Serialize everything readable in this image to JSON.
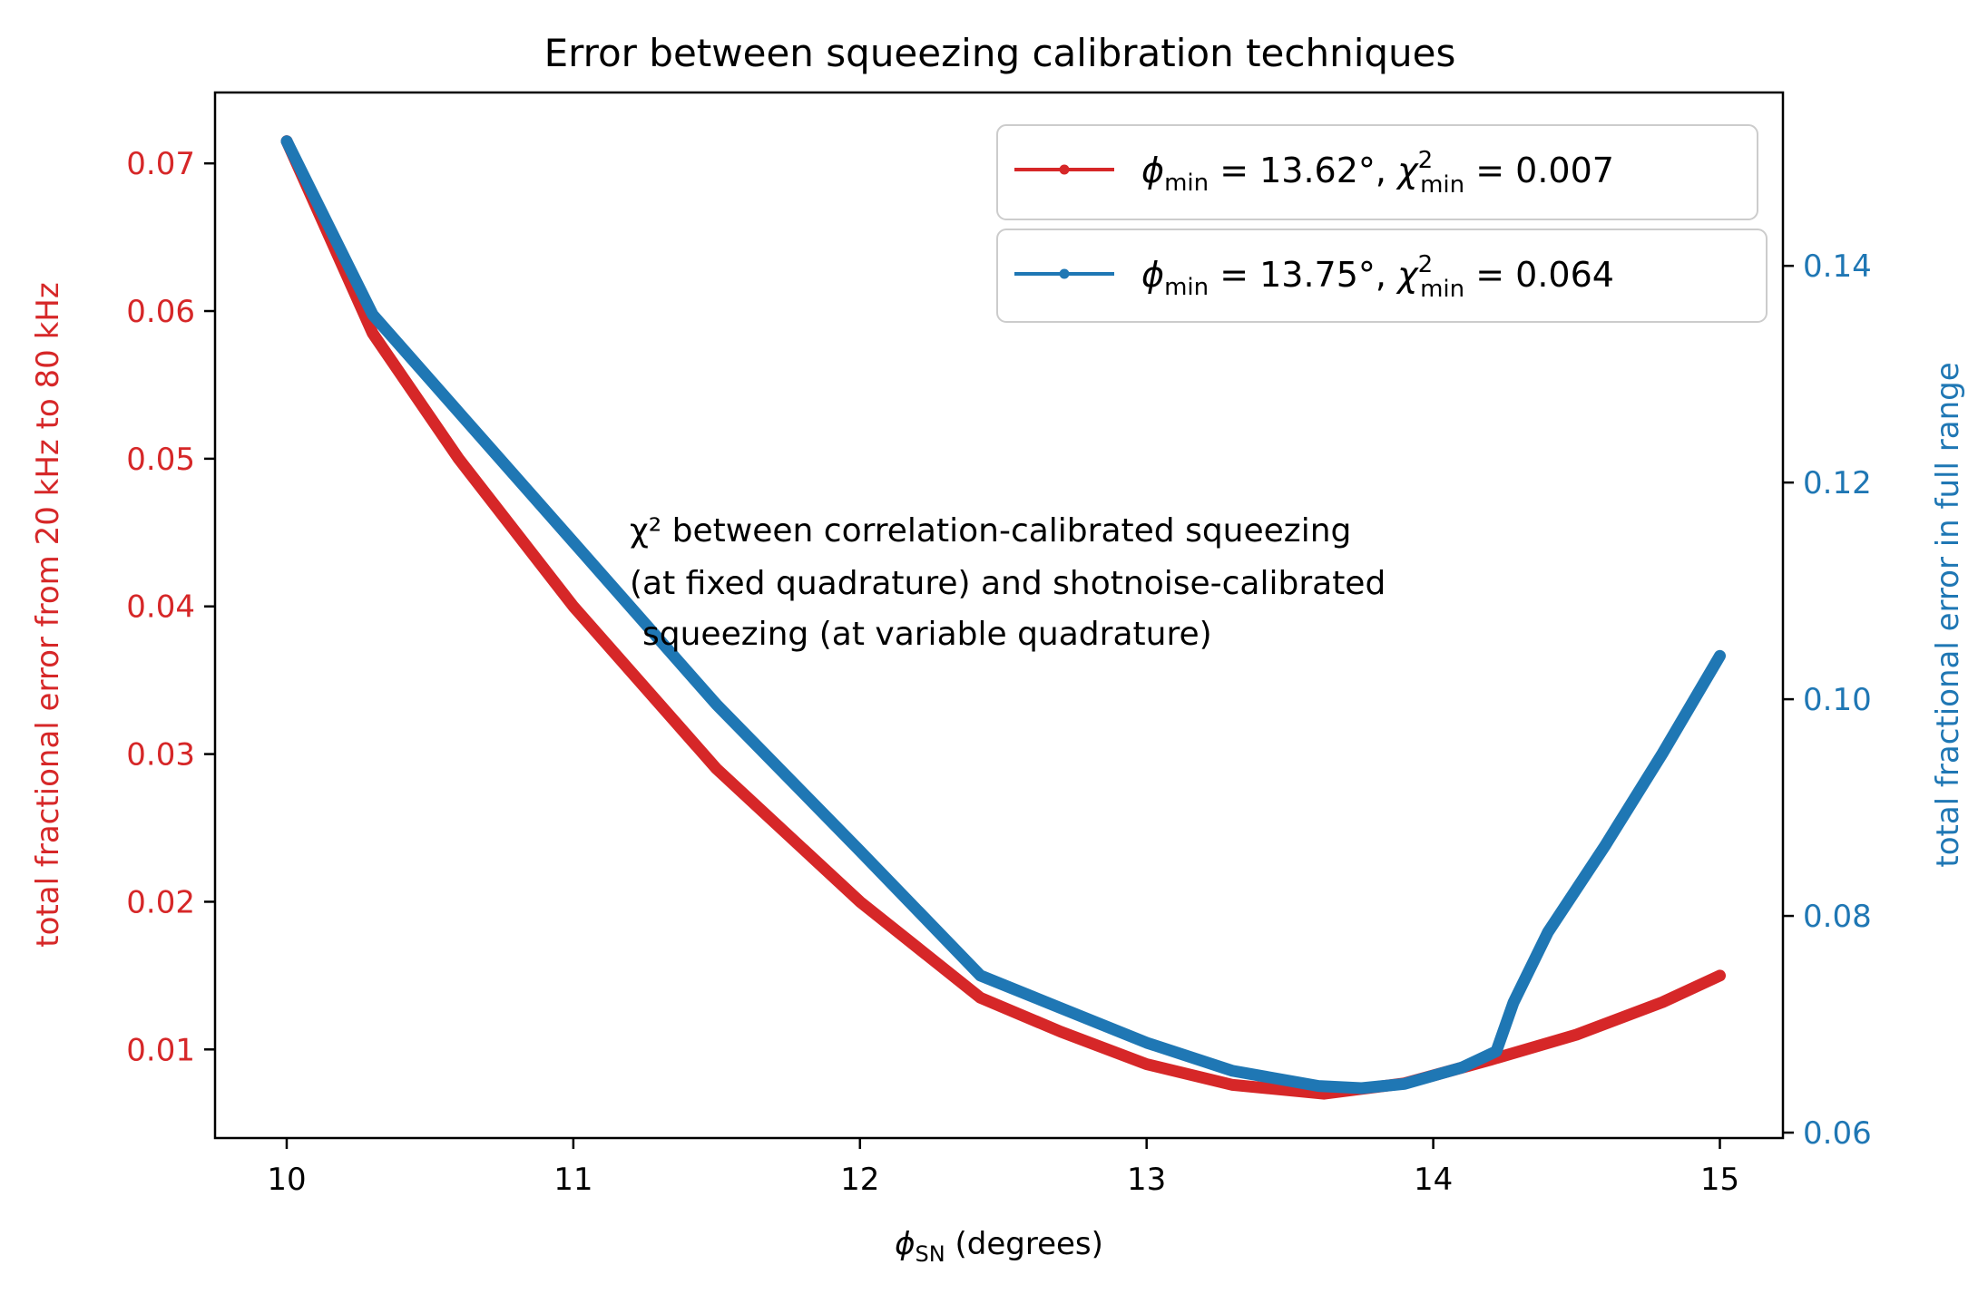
{
  "chart_data": {
    "type": "line",
    "title": "Error between squeezing calibration techniques",
    "xlabel_main": "ϕ",
    "xlabel_sub": "SN",
    "xlabel_rest": " (degrees)",
    "ylabel_left": "total fractional error from 20 kHz to 80 kHz",
    "ylabel_right": "total fractional error in full range",
    "xlim": [
      9.75,
      15.22
    ],
    "ylim_left": [
      0.004,
      0.0748
    ],
    "ylim_right": [
      0.0595,
      0.156
    ],
    "xticks": [
      10,
      11,
      12,
      13,
      14,
      15
    ],
    "yticks_left": [
      0.01,
      0.02,
      0.03,
      0.04,
      0.05,
      0.06,
      0.07
    ],
    "yticks_right": [
      0.06,
      0.08,
      0.1,
      0.12,
      0.14
    ],
    "xtick_labels": [
      "10",
      "11",
      "12",
      "13",
      "14",
      "15"
    ],
    "ytick_labels_left": [
      "0.01",
      "0.02",
      "0.03",
      "0.04",
      "0.05",
      "0.06",
      "0.07"
    ],
    "ytick_labels_right": [
      "0.06",
      "0.08",
      "0.10",
      "0.12",
      "0.14"
    ],
    "annotation": [
      "χ² between correlation-calibrated squeezing",
      "(at fixed quadrature) and shotnoise-calibrated",
      "squeezing (at variable quadrature)"
    ],
    "legend_placement": "top-right",
    "series": [
      {
        "name": "ϕmin = 13.62°, χ²min = 0.007",
        "color": "#d62728",
        "axis": "left",
        "x": [
          10.0,
          10.3,
          10.6,
          11.0,
          11.5,
          12.0,
          12.42,
          12.7,
          13.0,
          13.3,
          13.62,
          13.9,
          14.2,
          14.5,
          14.8,
          15.0
        ],
        "y": [
          0.0715,
          0.0585,
          0.05,
          0.04,
          0.029,
          0.02,
          0.0135,
          0.0112,
          0.009,
          0.0076,
          0.007,
          0.0077,
          0.0093,
          0.011,
          0.0132,
          0.015
        ]
      },
      {
        "name": "ϕmin = 13.75°, χ²min = 0.064",
        "color": "#1f77b4",
        "axis": "right",
        "x": [
          10.0,
          10.3,
          10.6,
          11.0,
          11.5,
          12.0,
          12.42,
          12.7,
          13.0,
          13.3,
          13.6,
          13.75,
          13.9,
          14.1,
          14.22,
          14.28,
          14.4,
          14.6,
          14.8,
          15.0
        ],
        "y": [
          0.1515,
          0.1355,
          0.1265,
          0.1145,
          0.0995,
          0.086,
          0.0745,
          0.0715,
          0.0683,
          0.0657,
          0.0643,
          0.0641,
          0.0645,
          0.066,
          0.0675,
          0.072,
          0.0785,
          0.0865,
          0.095,
          0.104
        ]
      }
    ]
  }
}
